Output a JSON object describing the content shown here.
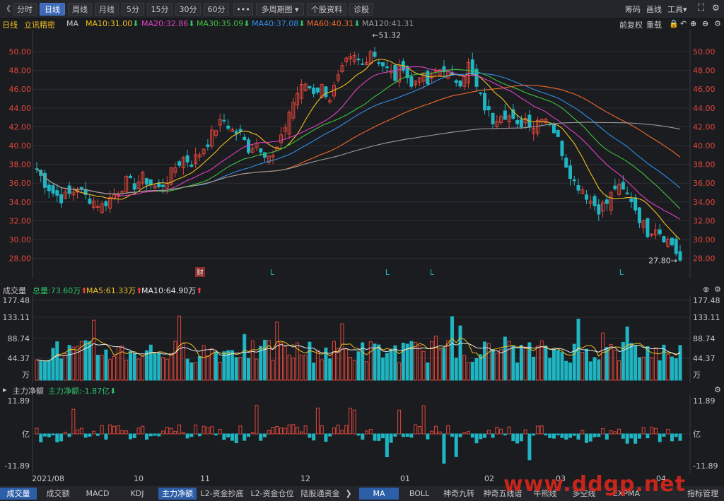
{
  "toolbar": {
    "back": "《",
    "periods": [
      "分时",
      "日线",
      "周线",
      "月线",
      "5分",
      "15分",
      "30分",
      "60分"
    ],
    "more": "•••",
    "multi_period": "多周期图",
    "stock_info": "个股资料",
    "diagnose": "诊股",
    "right": [
      "筹码",
      "画线",
      "工具"
    ]
  },
  "main_legend": {
    "period": "日线",
    "name": "立讯精密",
    "ma": "MA",
    "ma10": "MA10:31.00",
    "ma20": "MA20:32.86",
    "ma30": "MA30:35.09",
    "ma40": "MA40:37.08",
    "ma60": "MA60:40.31",
    "ma120": "MA120:41.31",
    "fq": "前复权",
    "overlay": "重载",
    "colors": {
      "ma10": "#f0c020",
      "ma20": "#e040c0",
      "ma30": "#40c040",
      "ma40": "#2f8fe8",
      "ma60": "#f06a2a",
      "ma120": "#9a9a9a"
    }
  },
  "main_axis": {
    "labels": [
      "50.00",
      "48.00",
      "46.00",
      "44.00",
      "42.00",
      "40.00",
      "38.00",
      "36.00",
      "34.00",
      "32.00",
      "30.00",
      "28.00"
    ],
    "high_label": "←51.32",
    "low_label": "27.80→",
    "markers": {
      "cai": "财",
      "L": "L"
    }
  },
  "volume": {
    "title": "成交量",
    "total": "总量:73.60万",
    "ma5": "MA5:61.33万",
    "ma10": "MA10:64.90万",
    "axis": [
      "177.48",
      "133.11",
      "88.74",
      "44.37",
      "万"
    ]
  },
  "money": {
    "title": "主力净额",
    "value": "主力净额:-1.87亿",
    "axis": [
      "11.89",
      "亿",
      "-11.89"
    ]
  },
  "xaxis": [
    "2021/08",
    "10",
    "11",
    "12",
    "01",
    "02",
    "03",
    "04"
  ],
  "bottom_tabs": [
    "成交量",
    "成交额",
    "MACD",
    "KDJ",
    "主力净额",
    "L2-资金抄底",
    "L2-资金仓位",
    "陆股通资金"
  ],
  "bottom_right": [
    "MA",
    "BOLL",
    "神奇九转",
    "神奇五线谱",
    "牛熊线",
    "多空线",
    "EXPMA",
    "指标管理"
  ],
  "watermark": "www.ddgp.net",
  "chart_data": {
    "type": "candlestick",
    "ylim": [
      27.0,
      51.9
    ],
    "high": 51.32,
    "low": 27.8,
    "x_labels": [
      "2021/08",
      "10",
      "11",
      "12",
      "01",
      "02",
      "03",
      "04"
    ],
    "close_path": [
      37.5,
      36,
      35,
      34.4,
      34.8,
      35.5,
      34.6,
      34.1,
      33.6,
      34.4,
      35.2,
      36.2,
      35.8,
      36.6,
      35.9,
      35.4,
      36.4,
      37.7,
      38.7,
      38.2,
      39.2,
      40.4,
      41.9,
      42.7,
      41.6,
      41.2,
      39.7,
      40.3,
      39.3,
      38.7,
      40.6,
      43.6,
      45.6,
      46.6,
      45.8,
      46.2,
      45.1,
      47.1,
      48.8,
      49.3,
      48.6,
      50.2,
      49.1,
      48.1,
      47.2,
      48.6,
      46.2,
      47.7,
      46.6,
      47.9,
      48.3,
      47.1,
      46.9,
      48.6,
      46.1,
      44.1,
      42.7,
      43.6,
      43.1,
      41.9,
      42.9,
      42.1,
      43.3,
      42.6,
      40.6,
      38.1,
      36.1,
      35.4,
      34.1,
      33.3,
      33.9,
      35.6,
      35.1,
      34.3,
      32.3,
      30.8,
      31.4,
      30.3,
      29.5,
      27.8
    ]
  }
}
